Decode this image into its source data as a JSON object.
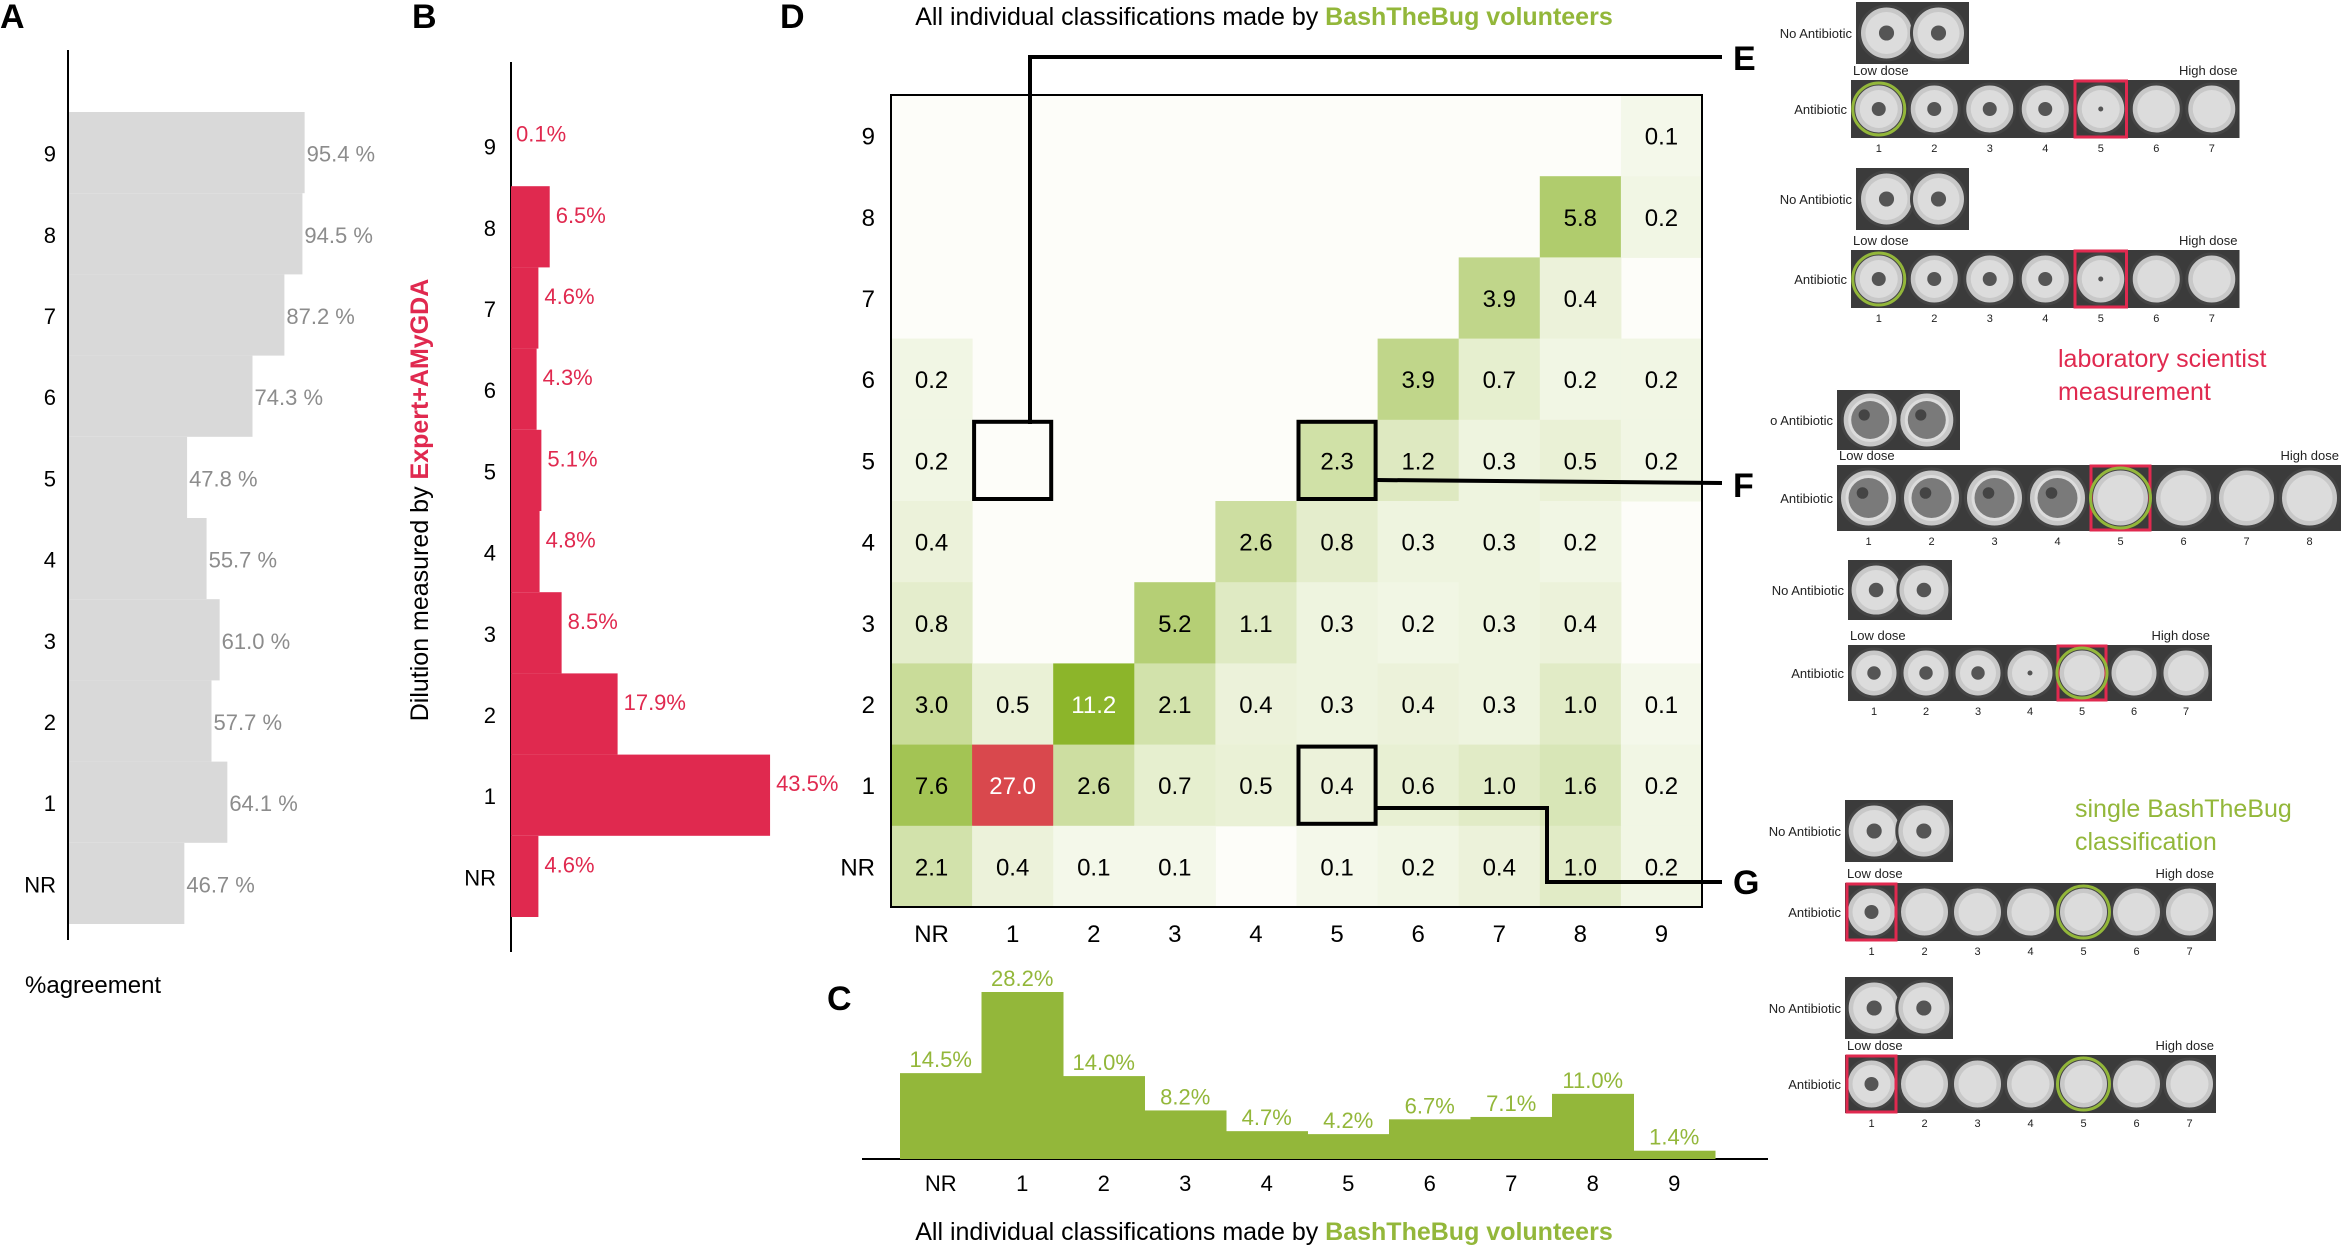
{
  "panel_letters": {
    "a": "A",
    "b": "B",
    "c": "C",
    "d": "D",
    "e": "E",
    "f": "F",
    "g": "G"
  },
  "colors": {
    "grey_bar": "#d9d9d9",
    "grey_text": "#8c8c8c",
    "red": "#e0294f",
    "green": "#93b73a",
    "green_text": "#93b73a",
    "heat_low": "#fbfcf6",
    "heat_high": "#8cb52a",
    "heat_red": "#d9484d"
  },
  "chart_data": [
    {
      "id": "A",
      "type": "bar",
      "orientation": "horizontal",
      "categories": [
        "9",
        "8",
        "7",
        "6",
        "5",
        "4",
        "3",
        "2",
        "1",
        "NR"
      ],
      "values": [
        95.4,
        94.5,
        87.2,
        74.3,
        47.8,
        55.7,
        61.0,
        57.7,
        64.1,
        46.7
      ],
      "labels": [
        "95.4 %",
        "94.5 %",
        "87.2 %",
        "74.3 %",
        "47.8 %",
        "55.7 %",
        "61.0 %",
        "57.7 %",
        "64.1 %",
        "46.7 %"
      ],
      "xlabel": "%agreement",
      "xlim": [
        0,
        100
      ]
    },
    {
      "id": "B",
      "type": "bar",
      "orientation": "horizontal",
      "categories": [
        "9",
        "8",
        "7",
        "6",
        "5",
        "4",
        "3",
        "2",
        "1",
        "NR"
      ],
      "values": [
        0.1,
        6.5,
        4.6,
        4.3,
        5.1,
        4.8,
        8.5,
        17.9,
        43.5,
        4.6
      ],
      "labels": [
        "0.1%",
        "6.5%",
        "4.6%",
        "4.3%",
        "5.1%",
        "4.8%",
        "8.5%",
        "17.9%",
        "43.5%",
        "4.6%"
      ],
      "ylabel_prefix": "Dilution measured by",
      "ylabel_highlight": "Expert+AMyGDA",
      "xlim": [
        0,
        45
      ]
    },
    {
      "id": "D",
      "type": "heatmap",
      "title_prefix": "All individual classifications made by",
      "title_highlight": "BashTheBug volunteers",
      "x_categories": [
        "NR",
        "1",
        "2",
        "3",
        "4",
        "5",
        "6",
        "7",
        "8",
        "9"
      ],
      "y_categories": [
        "9",
        "8",
        "7",
        "6",
        "5",
        "4",
        "3",
        "2",
        "1",
        "NR"
      ],
      "cells": [
        [
          "",
          "",
          "",
          "",
          "",
          "",
          "",
          "",
          "",
          "0.1"
        ],
        [
          "",
          "",
          "",
          "",
          "",
          "",
          "",
          "",
          "5.8",
          "0.2"
        ],
        [
          "",
          "",
          "",
          "",
          "",
          "",
          "",
          "3.9",
          "0.4",
          ""
        ],
        [
          "0.2",
          "",
          "",
          "",
          "",
          "",
          "3.9",
          "0.7",
          "0.2",
          "0.2"
        ],
        [
          "0.2",
          "",
          "",
          "",
          "",
          "2.3",
          "1.2",
          "0.3",
          "0.5",
          "0.2"
        ],
        [
          "0.4",
          "",
          "",
          "",
          "2.6",
          "0.8",
          "0.3",
          "0.3",
          "0.2",
          ""
        ],
        [
          "0.8",
          "",
          "",
          "5.2",
          "1.1",
          "0.3",
          "0.2",
          "0.3",
          "0.4",
          ""
        ],
        [
          "3.0",
          "0.5",
          "11.2",
          "2.1",
          "0.4",
          "0.3",
          "0.4",
          "0.3",
          "1.0",
          "0.1"
        ],
        [
          "7.6",
          "27.0",
          "2.6",
          "0.7",
          "0.5",
          "0.4",
          "0.6",
          "1.0",
          "1.6",
          "0.2"
        ],
        [
          "2.1",
          "0.4",
          "0.1",
          "0.1",
          "",
          "0.1",
          "0.2",
          "0.4",
          "1.0",
          "0.2"
        ]
      ],
      "highlighted_cells": [
        {
          "row": "5",
          "col": "1"
        },
        {
          "row": "5",
          "col": "5"
        },
        {
          "row": "1",
          "col": "5"
        }
      ]
    },
    {
      "id": "C",
      "type": "bar",
      "categories": [
        "NR",
        "1",
        "2",
        "3",
        "4",
        "5",
        "6",
        "7",
        "8",
        "9"
      ],
      "values": [
        14.5,
        28.2,
        14.0,
        8.2,
        4.7,
        4.2,
        6.7,
        7.1,
        11.0,
        1.4
      ],
      "labels": [
        "14.5%",
        "28.2%",
        "14.0%",
        "8.2%",
        "4.7%",
        "4.2%",
        "6.7%",
        "7.1%",
        "11.0%",
        "1.4%"
      ],
      "xlabel_prefix": "All individual classifications made by",
      "xlabel_highlight": "BashTheBug volunteers",
      "ylim": [
        0,
        30
      ]
    }
  ],
  "plates": {
    "no_antibiotic": "No Antibiotic",
    "no_antibiotic_cut": "o Antibiotic",
    "antibiotic": "Antibiotic",
    "antibiotic_alt": "Antibiotic",
    "low_dose": "Low dose",
    "high_dose": "High dose",
    "e1_numbers": [
      "1",
      "2",
      "3",
      "4",
      "5",
      "6",
      "7"
    ],
    "f_numbers": [
      "1",
      "2",
      "3",
      "4",
      "5",
      "6",
      "7",
      "8"
    ],
    "legend_scientist_1": "laboratory scientist",
    "legend_scientist_2": "measurement",
    "legend_single_1": "single BashTheBug",
    "legend_single_2": "classification"
  }
}
